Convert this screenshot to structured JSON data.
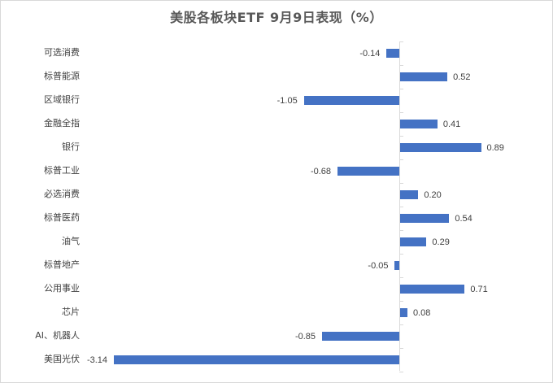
{
  "chart_data": {
    "type": "bar",
    "orientation": "horizontal",
    "title": "美股各板块ETF  9月9日表现（%）",
    "xlabel": "",
    "ylabel": "",
    "grid": false,
    "legend": null,
    "bar_color": "#4472c4",
    "categories": [
      "可选消费",
      "标普能源",
      "区域银行",
      "金融全指",
      "银行",
      "标普工业",
      "必选消费",
      "标普医药",
      "油气",
      "标普地产",
      "公用事业",
      "芯片",
      "AI、机器人",
      "美国光伏"
    ],
    "values": [
      -0.14,
      0.52,
      -1.05,
      0.41,
      0.89,
      -0.68,
      0.2,
      0.54,
      0.29,
      -0.05,
      0.71,
      0.08,
      -0.85,
      -3.14
    ],
    "labels": [
      "-0.14",
      "0.52",
      "-1.05",
      "0.41",
      "0.89",
      "-0.68",
      "0.20",
      "0.54",
      "0.29",
      "-0.05",
      "0.71",
      "0.08",
      "-0.85",
      "-3.14"
    ],
    "xlim": [
      -3.14,
      0.89
    ]
  }
}
